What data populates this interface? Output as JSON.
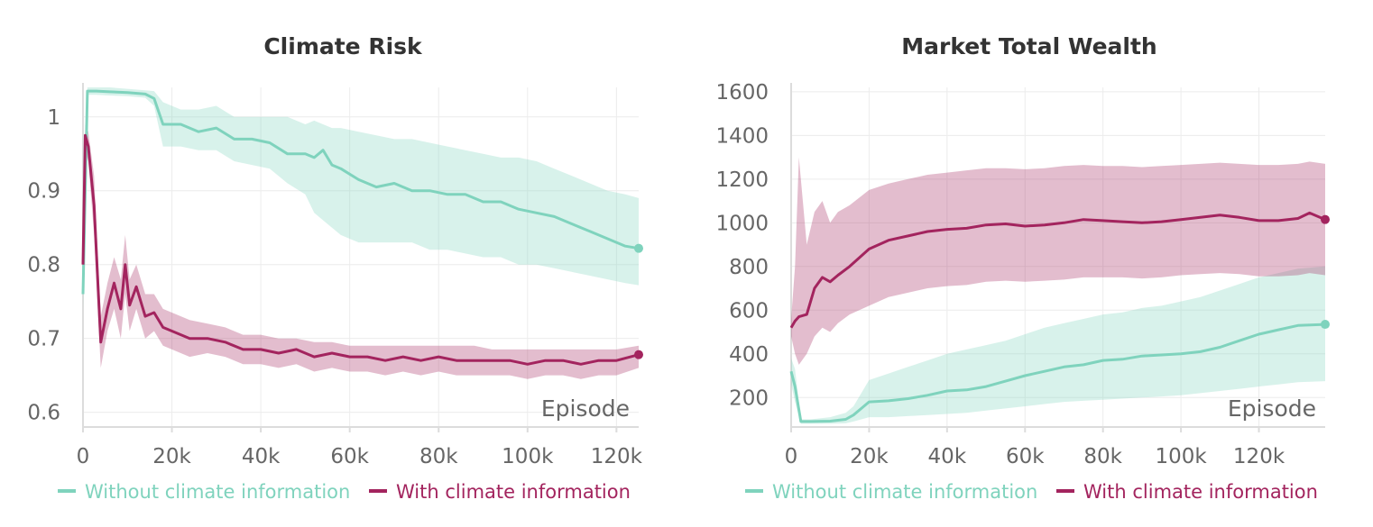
{
  "colors": {
    "without": "#7fd3bd",
    "with": "#a3245e"
  },
  "chart_data": [
    {
      "type": "line",
      "title": "Climate Risk",
      "xlabel": "Episode",
      "ylabel": "",
      "xlim": [
        0,
        125000
      ],
      "ylim": [
        0.58,
        1.04
      ],
      "xticks": [
        0,
        20000,
        40000,
        60000,
        80000,
        100000,
        120000
      ],
      "xtick_labels": [
        "0",
        "20k",
        "40k",
        "60k",
        "80k",
        "100k",
        "120k"
      ],
      "yticks": [
        0.6,
        0.7,
        0.8,
        0.9,
        1.0
      ],
      "ytick_labels": [
        "0.6",
        "0.7",
        "0.8",
        "0.9",
        "1"
      ],
      "grid": true,
      "legend": [
        "Without climate information",
        "With climate information"
      ],
      "series": [
        {
          "name": "Without climate information",
          "color": "without",
          "x": [
            0,
            1000,
            3000,
            6000,
            10000,
            14000,
            16000,
            18000,
            22000,
            26000,
            30000,
            34000,
            38000,
            42000,
            46000,
            50000,
            52000,
            54000,
            56000,
            58000,
            62000,
            66000,
            70000,
            74000,
            78000,
            82000,
            86000,
            90000,
            94000,
            98000,
            102000,
            106000,
            110000,
            114000,
            118000,
            122000,
            125000
          ],
          "y": [
            0.76,
            1.035,
            1.035,
            1.034,
            1.033,
            1.031,
            1.025,
            0.99,
            0.99,
            0.98,
            0.985,
            0.97,
            0.97,
            0.965,
            0.95,
            0.95,
            0.945,
            0.955,
            0.935,
            0.93,
            0.915,
            0.905,
            0.91,
            0.9,
            0.9,
            0.895,
            0.895,
            0.885,
            0.885,
            0.875,
            0.87,
            0.865,
            0.855,
            0.845,
            0.835,
            0.825,
            0.822
          ],
          "upper": [
            0.78,
            1.04,
            1.04,
            1.04,
            1.038,
            1.036,
            1.035,
            1.02,
            1.01,
            1.01,
            1.015,
            1.0,
            1.0,
            1.0,
            1.0,
            0.99,
            0.995,
            0.99,
            0.985,
            0.985,
            0.98,
            0.975,
            0.97,
            0.97,
            0.965,
            0.96,
            0.955,
            0.95,
            0.945,
            0.945,
            0.94,
            0.93,
            0.92,
            0.91,
            0.9,
            0.895,
            0.89
          ],
          "lower": [
            0.74,
            1.03,
            1.03,
            1.029,
            1.028,
            1.026,
            1.015,
            0.96,
            0.96,
            0.955,
            0.955,
            0.94,
            0.935,
            0.93,
            0.91,
            0.895,
            0.87,
            0.86,
            0.85,
            0.84,
            0.83,
            0.83,
            0.83,
            0.83,
            0.82,
            0.82,
            0.815,
            0.81,
            0.81,
            0.8,
            0.8,
            0.795,
            0.79,
            0.785,
            0.78,
            0.775,
            0.772
          ]
        },
        {
          "name": "With climate information",
          "color": "with",
          "x": [
            0,
            500,
            1200,
            2500,
            4000,
            5500,
            7000,
            8500,
            9500,
            10500,
            12000,
            14000,
            16000,
            18000,
            20000,
            24000,
            28000,
            32000,
            36000,
            40000,
            44000,
            48000,
            52000,
            56000,
            60000,
            64000,
            68000,
            72000,
            76000,
            80000,
            84000,
            88000,
            92000,
            96000,
            100000,
            104000,
            108000,
            112000,
            116000,
            120000,
            125000
          ],
          "y": [
            0.8,
            0.975,
            0.96,
            0.88,
            0.695,
            0.74,
            0.775,
            0.74,
            0.8,
            0.745,
            0.77,
            0.73,
            0.735,
            0.715,
            0.71,
            0.7,
            0.7,
            0.695,
            0.685,
            0.685,
            0.68,
            0.685,
            0.675,
            0.68,
            0.675,
            0.675,
            0.67,
            0.675,
            0.67,
            0.675,
            0.67,
            0.67,
            0.67,
            0.67,
            0.665,
            0.67,
            0.67,
            0.665,
            0.67,
            0.67,
            0.678
          ],
          "upper": [
            0.82,
            0.99,
            0.98,
            0.92,
            0.73,
            0.775,
            0.81,
            0.78,
            0.84,
            0.78,
            0.8,
            0.76,
            0.76,
            0.74,
            0.735,
            0.725,
            0.72,
            0.715,
            0.705,
            0.705,
            0.7,
            0.7,
            0.695,
            0.695,
            0.69,
            0.69,
            0.69,
            0.69,
            0.69,
            0.69,
            0.69,
            0.69,
            0.685,
            0.685,
            0.685,
            0.685,
            0.685,
            0.685,
            0.685,
            0.685,
            0.69
          ],
          "lower": [
            0.78,
            0.955,
            0.94,
            0.84,
            0.66,
            0.71,
            0.74,
            0.7,
            0.76,
            0.71,
            0.74,
            0.7,
            0.71,
            0.69,
            0.685,
            0.675,
            0.68,
            0.675,
            0.665,
            0.665,
            0.66,
            0.665,
            0.655,
            0.66,
            0.655,
            0.655,
            0.65,
            0.655,
            0.65,
            0.655,
            0.65,
            0.65,
            0.65,
            0.65,
            0.645,
            0.65,
            0.65,
            0.645,
            0.65,
            0.65,
            0.66
          ]
        }
      ]
    },
    {
      "type": "line",
      "title": "Market Total Wealth",
      "xlabel": "Episode",
      "ylabel": "",
      "xlim": [
        0,
        137000
      ],
      "ylim": [
        65,
        1620
      ],
      "xticks": [
        0,
        20000,
        40000,
        60000,
        80000,
        100000,
        120000
      ],
      "xtick_labels": [
        "0",
        "20k",
        "40k",
        "60k",
        "80k",
        "100k",
        "120k"
      ],
      "yticks": [
        200,
        400,
        600,
        800,
        1000,
        1200,
        1400,
        1600
      ],
      "ytick_labels": [
        "200",
        "400",
        "600",
        "800",
        "1000",
        "1200",
        "1400",
        "1600"
      ],
      "grid": true,
      "legend": [
        "Without climate information",
        "With climate information"
      ],
      "series": [
        {
          "name": "Without climate information",
          "color": "without",
          "x": [
            0,
            1000,
            2500,
            5000,
            10000,
            14000,
            16000,
            18000,
            20000,
            25000,
            30000,
            35000,
            40000,
            45000,
            50000,
            55000,
            60000,
            65000,
            70000,
            75000,
            80000,
            85000,
            90000,
            95000,
            100000,
            105000,
            110000,
            115000,
            120000,
            125000,
            130000,
            137000
          ],
          "y": [
            320,
            250,
            90,
            90,
            92,
            100,
            120,
            150,
            180,
            185,
            195,
            210,
            230,
            235,
            250,
            275,
            300,
            320,
            340,
            350,
            370,
            375,
            390,
            395,
            400,
            410,
            430,
            460,
            490,
            510,
            530,
            535
          ],
          "upper": [
            380,
            330,
            100,
            100,
            110,
            130,
            160,
            220,
            280,
            310,
            340,
            370,
            400,
            420,
            440,
            460,
            490,
            520,
            540,
            560,
            580,
            590,
            610,
            620,
            640,
            660,
            690,
            720,
            750,
            770,
            790,
            800
          ],
          "lower": [
            260,
            180,
            80,
            80,
            80,
            82,
            90,
            100,
            110,
            110,
            115,
            120,
            125,
            130,
            140,
            150,
            160,
            170,
            180,
            185,
            190,
            195,
            200,
            205,
            210,
            220,
            230,
            240,
            250,
            260,
            270,
            275
          ]
        },
        {
          "name": "With climate information",
          "color": "with",
          "x": [
            0,
            1000,
            2000,
            4000,
            6000,
            8000,
            10000,
            12000,
            15000,
            20000,
            25000,
            30000,
            35000,
            40000,
            45000,
            50000,
            55000,
            60000,
            65000,
            70000,
            75000,
            80000,
            85000,
            90000,
            95000,
            100000,
            105000,
            110000,
            115000,
            120000,
            125000,
            130000,
            133000,
            137000
          ],
          "y": [
            520,
            550,
            570,
            580,
            700,
            750,
            730,
            760,
            800,
            880,
            920,
            940,
            960,
            970,
            975,
            990,
            995,
            985,
            990,
            1000,
            1015,
            1010,
            1005,
            1000,
            1005,
            1015,
            1025,
            1035,
            1025,
            1010,
            1010,
            1020,
            1045,
            1015
          ],
          "upper": [
            560,
            800,
            1300,
            900,
            1050,
            1100,
            1000,
            1050,
            1080,
            1150,
            1180,
            1200,
            1220,
            1230,
            1240,
            1250,
            1250,
            1245,
            1250,
            1260,
            1265,
            1260,
            1260,
            1255,
            1260,
            1265,
            1270,
            1275,
            1270,
            1265,
            1265,
            1270,
            1280,
            1270
          ],
          "lower": [
            480,
            400,
            350,
            400,
            480,
            520,
            500,
            540,
            580,
            620,
            660,
            680,
            700,
            710,
            715,
            730,
            735,
            730,
            735,
            740,
            750,
            750,
            750,
            745,
            750,
            760,
            765,
            770,
            765,
            755,
            755,
            760,
            770,
            760
          ]
        }
      ]
    }
  ]
}
